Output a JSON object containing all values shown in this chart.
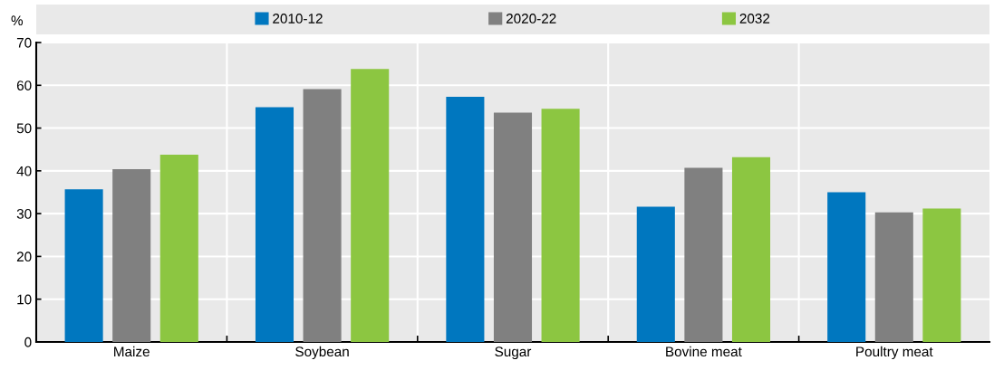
{
  "chart_data": {
    "type": "bar",
    "ylabel": "%",
    "categories": [
      "Maize",
      "Soybean",
      "Sugar",
      "Bovine meat",
      "Poultry meat"
    ],
    "series": [
      {
        "name": "2010-12",
        "color": "#0077bf",
        "values": [
          35.7,
          54.9,
          57.3,
          31.6,
          35.0
        ]
      },
      {
        "name": "2020-22",
        "color": "#808080",
        "values": [
          40.4,
          59.1,
          53.6,
          40.7,
          30.3
        ]
      },
      {
        "name": "2032",
        "color": "#8cc641",
        "values": [
          43.8,
          63.8,
          54.5,
          43.2,
          31.2
        ]
      }
    ],
    "ylim": [
      0,
      70
    ],
    "yticks": [
      0,
      10,
      20,
      30,
      40,
      50,
      60,
      70
    ],
    "grid": true,
    "legend": "top"
  }
}
